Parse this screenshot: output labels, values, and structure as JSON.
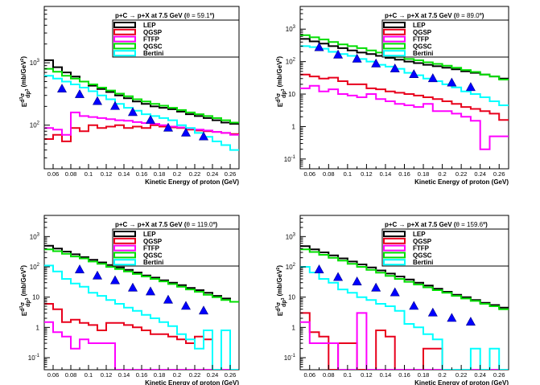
{
  "figure": {
    "series_styles": [
      {
        "name": "LEP",
        "color": "#000000"
      },
      {
        "name": "QGSP",
        "color": "#e8001c"
      },
      {
        "name": "FTFP",
        "color": "#ff00ff"
      },
      {
        "name": "QGSC",
        "color": "#00dd00"
      },
      {
        "name": "Bertini",
        "color": "#00ffff"
      }
    ],
    "data_marker": {
      "shape": "triangle-up",
      "color": "#0000ff"
    },
    "axes_common": {
      "xlabel": "Kinetic Energy of proton (GeV)",
      "ylabel_html": "E d³σ / dp³ (mb/GeV²)",
      "ylabel_parts": [
        "E",
        "d",
        "3",
        "σ",
        "dp",
        "3",
        "(mb/GeV",
        "2",
        ")"
      ],
      "x_ticks": [
        "0.06",
        "0.08",
        "0.1",
        "0.12",
        "0.14",
        "0.16",
        "0.18",
        "0.2",
        "0.22",
        "0.24",
        "0.26"
      ],
      "xlim": [
        0.05,
        0.27
      ]
    }
  },
  "chart_data": [
    {
      "type": "line",
      "title": "p+C → p+X at 7.5 GeV (θ = 59.1°)",
      "title_parts": [
        "p+C",
        "→",
        "p+X at 7.5 GeV (",
        "θ",
        " =  59.1",
        "o",
        ")"
      ],
      "xlabel": "Kinetic Energy of proton (GeV)",
      "ylabel": "E d³σ/dp³ (mb/GeV²)",
      "yscale": "log",
      "ylim": [
        20,
        8000
      ],
      "y_ticks": [
        {
          "v": 100,
          "label": "10",
          "exp": "2"
        },
        {
          "v": 1000,
          "label": "10",
          "exp": "3"
        }
      ],
      "legend": "top-right",
      "x_edges": [
        0.05,
        0.06,
        0.07,
        0.08,
        0.09,
        0.1,
        0.11,
        0.12,
        0.13,
        0.14,
        0.15,
        0.16,
        0.17,
        0.18,
        0.19,
        0.2,
        0.21,
        0.22,
        0.23,
        0.24,
        0.25,
        0.26,
        0.27
      ],
      "series": [
        {
          "name": "LEP",
          "values": [
            1100,
            850,
            700,
            600,
            500,
            430,
            380,
            340,
            300,
            270,
            240,
            220,
            200,
            190,
            180,
            165,
            150,
            140,
            130,
            120,
            110,
            105
          ]
        },
        {
          "name": "QGSP",
          "values": [
            60,
            70,
            55,
            90,
            80,
            100,
            90,
            95,
            100,
            90,
            95,
            90,
            100,
            95,
            92,
            90,
            85,
            82,
            80,
            78,
            75,
            72
          ]
        },
        {
          "name": "FTFP",
          "values": [
            90,
            85,
            70,
            160,
            140,
            135,
            130,
            125,
            120,
            118,
            112,
            108,
            105,
            100,
            95,
            92,
            88,
            85,
            82,
            78,
            75,
            70
          ]
        },
        {
          "name": "QGSC",
          "values": [
            800,
            720,
            620,
            560,
            500,
            450,
            400,
            360,
            320,
            290,
            260,
            240,
            220,
            205,
            190,
            175,
            160,
            150,
            140,
            130,
            120,
            110
          ]
        },
        {
          "name": "Bertini",
          "values": [
            620,
            560,
            500,
            450,
            400,
            350,
            300,
            260,
            220,
            190,
            170,
            150,
            140,
            130,
            120,
            100,
            90,
            75,
            65,
            55,
            48,
            40
          ]
        }
      ],
      "data_points": {
        "x": [
          0.07,
          0.09,
          0.11,
          0.13,
          0.15,
          0.17,
          0.19,
          0.21,
          0.23
        ],
        "y": [
          380,
          310,
          240,
          200,
          160,
          120,
          90,
          75,
          65
        ]
      }
    },
    {
      "type": "line",
      "title": "p+C → p+X at 7.5 GeV (θ = 89.0°)",
      "title_parts": [
        "p+C",
        "→",
        "p+X at 7.5 GeV (",
        "θ",
        " =  89.0",
        "o",
        ")"
      ],
      "xlabel": "Kinetic Energy of proton (GeV)",
      "ylabel": "E d³σ/dp³ (mb/GeV²)",
      "yscale": "log",
      "ylim": [
        0.05,
        5000
      ],
      "y_ticks": [
        {
          "v": 0.1,
          "label": "10",
          "exp": "-1"
        },
        {
          "v": 1,
          "label": "1",
          "exp": ""
        },
        {
          "v": 10,
          "label": "10",
          "exp": ""
        },
        {
          "v": 100,
          "label": "10",
          "exp": "2"
        },
        {
          "v": 1000,
          "label": "10",
          "exp": "3"
        }
      ],
      "legend": "top-right",
      "x_edges": [
        0.05,
        0.06,
        0.07,
        0.08,
        0.09,
        0.1,
        0.11,
        0.12,
        0.13,
        0.14,
        0.15,
        0.16,
        0.17,
        0.18,
        0.19,
        0.2,
        0.21,
        0.22,
        0.23,
        0.24,
        0.25,
        0.26,
        0.27
      ],
      "series": [
        {
          "name": "LEP",
          "values": [
            500,
            420,
            360,
            300,
            260,
            220,
            190,
            170,
            150,
            130,
            115,
            100,
            90,
            80,
            72,
            65,
            58,
            50,
            45,
            40,
            35,
            30
          ]
        },
        {
          "name": "QGSP",
          "values": [
            40,
            35,
            30,
            32,
            25,
            20,
            20,
            15,
            14,
            12,
            11,
            10,
            9,
            8,
            7,
            6,
            5,
            4,
            3.5,
            3,
            2.5,
            1.6
          ]
        },
        {
          "name": "FTFP",
          "values": [
            15,
            18,
            12,
            14,
            10,
            9,
            8,
            10,
            7,
            6,
            5,
            4.5,
            4,
            5,
            3,
            3,
            2.5,
            2,
            1.5,
            0.2,
            0.5,
            0.5
          ]
        },
        {
          "name": "QGSC",
          "values": [
            650,
            560,
            480,
            400,
            340,
            300,
            260,
            220,
            190,
            160,
            140,
            120,
            110,
            95,
            85,
            75,
            65,
            55,
            48,
            40,
            35,
            28
          ]
        },
        {
          "name": "Bertini",
          "values": [
            300,
            280,
            250,
            200,
            170,
            150,
            120,
            100,
            80,
            70,
            60,
            45,
            38,
            30,
            25,
            20,
            16,
            12,
            10,
            8,
            6,
            4.5
          ]
        }
      ],
      "data_points": {
        "x": [
          0.07,
          0.09,
          0.11,
          0.13,
          0.15,
          0.17,
          0.19,
          0.21,
          0.23
        ],
        "y": [
          270,
          160,
          120,
          85,
          60,
          40,
          30,
          22,
          16
        ]
      }
    },
    {
      "type": "line",
      "title": "p+C → p+X at 7.5 GeV (θ = 119.0°)",
      "title_parts": [
        "p+C",
        "→",
        "p+X at 7.5 GeV (",
        "θ",
        " = 119.0",
        "o",
        ")"
      ],
      "xlabel": "Kinetic Energy of proton (GeV)",
      "ylabel": "E d³σ/dp³ (mb/GeV²)",
      "yscale": "log",
      "ylim": [
        0.04,
        5000
      ],
      "y_ticks": [
        {
          "v": 0.1,
          "label": "10",
          "exp": "-1"
        },
        {
          "v": 1,
          "label": "1",
          "exp": ""
        },
        {
          "v": 10,
          "label": "10",
          "exp": ""
        },
        {
          "v": 100,
          "label": "10",
          "exp": "2"
        },
        {
          "v": 1000,
          "label": "10",
          "exp": "3"
        }
      ],
      "legend": "top-right",
      "x_edges": [
        0.05,
        0.06,
        0.07,
        0.08,
        0.09,
        0.1,
        0.11,
        0.12,
        0.13,
        0.14,
        0.15,
        0.16,
        0.17,
        0.18,
        0.19,
        0.2,
        0.21,
        0.22,
        0.23,
        0.24,
        0.25,
        0.26,
        0.27
      ],
      "series": [
        {
          "name": "LEP",
          "values": [
            500,
            400,
            320,
            260,
            210,
            170,
            140,
            115,
            95,
            80,
            65,
            52,
            44,
            36,
            30,
            25,
            20,
            17,
            14,
            11,
            9,
            7
          ]
        },
        {
          "name": "QGSP",
          "values": [
            6,
            4,
            1.5,
            1.8,
            1.4,
            1.2,
            0.8,
            1.4,
            1.4,
            1.2,
            1.0,
            0.8,
            0.6,
            0.6,
            0.5,
            0.4,
            0.3,
            0.5,
            0.4,
            0.04,
            0.04,
            0.04
          ]
        },
        {
          "name": "FTFP",
          "values": [
            1.5,
            0.7,
            0.5,
            0.2,
            0.4,
            0.3,
            0.3,
            0.3,
            0.04,
            0.04,
            0.04,
            0.04,
            0.04,
            0.04,
            0.04,
            0.04,
            0.04,
            0.04,
            0.04,
            0.04,
            0.04,
            0.04
          ]
        },
        {
          "name": "QGSC",
          "values": [
            380,
            330,
            270,
            220,
            190,
            150,
            125,
            100,
            85,
            70,
            58,
            48,
            40,
            33,
            27,
            22,
            18,
            15,
            12,
            10,
            8,
            7
          ]
        },
        {
          "name": "Bertini",
          "values": [
            110,
            70,
            40,
            28,
            22,
            14,
            11,
            8,
            6,
            4.5,
            3.5,
            2.6,
            2,
            1.5,
            1.1,
            0.6,
            0.4,
            0.2,
            0.8,
            0.04,
            0.8,
            0.04
          ]
        }
      ],
      "data_points": {
        "x": [
          0.09,
          0.11,
          0.13,
          0.15,
          0.17,
          0.19,
          0.21,
          0.23
        ],
        "y": [
          80,
          50,
          35,
          20,
          15,
          8,
          5,
          3.5
        ]
      }
    },
    {
      "type": "line",
      "title": "p+C → p+X at 7.5 GeV (θ = 159.6°)",
      "title_parts": [
        "p+C",
        "→",
        "p+X at 7.5 GeV (",
        "θ",
        " = 159.6",
        "o",
        ")"
      ],
      "xlabel": "Kinetic Energy of proton (GeV)",
      "ylabel": "E d³σ/dp³ (mb/GeV²)",
      "yscale": "log",
      "ylim": [
        0.04,
        5000
      ],
      "y_ticks": [
        {
          "v": 0.1,
          "label": "10",
          "exp": "-1"
        },
        {
          "v": 1,
          "label": "1",
          "exp": ""
        },
        {
          "v": 10,
          "label": "10",
          "exp": ""
        },
        {
          "v": 100,
          "label": "10",
          "exp": "2"
        },
        {
          "v": 1000,
          "label": "10",
          "exp": "3"
        }
      ],
      "legend": "top-right",
      "x_edges": [
        0.05,
        0.06,
        0.07,
        0.08,
        0.09,
        0.1,
        0.11,
        0.12,
        0.13,
        0.14,
        0.15,
        0.16,
        0.17,
        0.18,
        0.19,
        0.2,
        0.21,
        0.22,
        0.23,
        0.24,
        0.25,
        0.26,
        0.27
      ],
      "series": [
        {
          "name": "LEP",
          "values": [
            480,
            380,
            300,
            240,
            190,
            150,
            120,
            95,
            76,
            60,
            48,
            38,
            30,
            24,
            19,
            15,
            12,
            10,
            8,
            6.5,
            5.5,
            4.5
          ]
        },
        {
          "name": "QGSP",
          "values": [
            3,
            0.7,
            0.5,
            0.04,
            0.3,
            0.3,
            0.04,
            0.04,
            0.8,
            0.5,
            0.04,
            0.04,
            0.04,
            0.2,
            0.2,
            0.04,
            0.04,
            0.04,
            0.04,
            0.04,
            0.04,
            0.04
          ]
        },
        {
          "name": "FTFP",
          "values": [
            1.5,
            0.3,
            0.3,
            0.3,
            0.04,
            0.04,
            3.0,
            0.04,
            0.04,
            0.04,
            0.04,
            0.04,
            0.04,
            0.04,
            0.04,
            0.04,
            0.04,
            0.04,
            0.04,
            0.04,
            0.04,
            0.04
          ]
        },
        {
          "name": "QGSC",
          "values": [
            380,
            310,
            250,
            200,
            160,
            125,
            100,
            80,
            64,
            50,
            40,
            32,
            26,
            21,
            17,
            14,
            11,
            9,
            7.5,
            6,
            5,
            4
          ]
        },
        {
          "name": "Bertini",
          "values": [
            100,
            65,
            40,
            30,
            18,
            14,
            10,
            8,
            6,
            5,
            3.5,
            1.3,
            1.0,
            0.6,
            0.4,
            0.04,
            0.04,
            0.04,
            0.2,
            0.04,
            0.2,
            0.04
          ]
        }
      ],
      "data_points": {
        "x": [
          0.07,
          0.09,
          0.11,
          0.13,
          0.15,
          0.17,
          0.19,
          0.21,
          0.23
        ],
        "y": [
          80,
          45,
          32,
          20,
          14,
          5,
          3,
          2,
          1.5
        ]
      }
    }
  ]
}
